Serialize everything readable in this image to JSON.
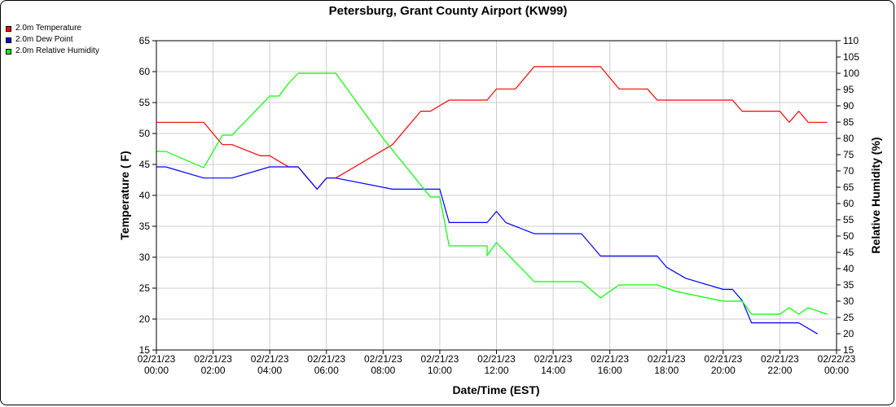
{
  "chart_data": {
    "type": "line",
    "title": "Petersburg, Grant County Airport (KW99)",
    "xlabel": "Date/Time (EST)",
    "ylabel": "Temperature ( F)",
    "y2label": "Relative Humidity (%)",
    "xlim": [
      0,
      24
    ],
    "ylim": [
      15,
      65
    ],
    "y2lim": [
      15,
      110
    ],
    "grid": true,
    "legend_position": "top-left",
    "x_tick_labels": [
      [
        "02/21/23",
        "00:00"
      ],
      [
        "02/21/23",
        "02:00"
      ],
      [
        "02/21/23",
        "04:00"
      ],
      [
        "02/21/23",
        "06:00"
      ],
      [
        "02/21/23",
        "08:00"
      ],
      [
        "02/21/23",
        "10:00"
      ],
      [
        "02/21/23",
        "12:00"
      ],
      [
        "02/21/23",
        "14:00"
      ],
      [
        "02/21/23",
        "16:00"
      ],
      [
        "02/21/23",
        "18:00"
      ],
      [
        "02/21/23",
        "20:00"
      ],
      [
        "02/21/23",
        "22:00"
      ],
      [
        "02/22/23",
        "00:00"
      ]
    ],
    "y_ticks": [
      15,
      20,
      25,
      30,
      35,
      40,
      45,
      50,
      55,
      60,
      65
    ],
    "y2_ticks": [
      15,
      20,
      25,
      30,
      35,
      40,
      45,
      50,
      55,
      60,
      65,
      70,
      75,
      80,
      85,
      90,
      95,
      100,
      105,
      110
    ],
    "series": [
      {
        "name": "2.0m Temperature",
        "color": "#ff0000",
        "axis": "left",
        "x": [
          0,
          1.67,
          2.33,
          2.67,
          3.67,
          4,
          4.33,
          4.67,
          5,
          5.33,
          5.67,
          6,
          6.33,
          7,
          8.33,
          9.33,
          9.67,
          10.33,
          11,
          11.67,
          12,
          12.67,
          13.33,
          15.67,
          16,
          16.33,
          17,
          17.33,
          17.67,
          18,
          20.33,
          20.67,
          22,
          22.33,
          22.67,
          23,
          23.67
        ],
        "values": [
          51.8,
          51.8,
          48.2,
          48.2,
          46.4,
          46.4,
          45.5,
          44.6,
          44.6,
          42.8,
          41,
          42.8,
          42.8,
          44.6,
          48.2,
          53.6,
          53.6,
          55.4,
          55.4,
          55.4,
          57.2,
          57.2,
          60.8,
          60.8,
          59,
          57.2,
          57.2,
          57.2,
          55.4,
          55.4,
          55.4,
          53.6,
          53.6,
          51.8,
          53.6,
          51.8,
          51.8
        ]
      },
      {
        "name": "2.0m Dew Point",
        "color": "#0000ff",
        "axis": "left",
        "x": [
          0,
          0.33,
          1.67,
          2.67,
          4,
          5,
          5.67,
          6,
          6.33,
          8.33,
          10,
          10.33,
          11.67,
          12,
          12.33,
          13.33,
          15,
          15.67,
          17.67,
          18,
          18.67,
          20,
          20.33,
          20.67,
          21,
          22.67,
          23.33
        ],
        "values": [
          44.6,
          44.6,
          42.8,
          42.8,
          44.6,
          44.6,
          41,
          42.8,
          42.8,
          41,
          41,
          35.6,
          35.6,
          37.4,
          35.6,
          33.8,
          33.8,
          30.2,
          30.2,
          28.4,
          26.6,
          24.8,
          24.8,
          23,
          19.4,
          19.4,
          17.6
        ]
      },
      {
        "name": "2.0m Relative Humidity",
        "color": "#00ff00",
        "axis": "right",
        "x": [
          0,
          0.33,
          1.67,
          2.33,
          2.67,
          4,
          4.33,
          4.67,
          5,
          6.33,
          8,
          9.67,
          10,
          10.33,
          10.67,
          11.67,
          11.67,
          12,
          13.33,
          15,
          15.67,
          16.33,
          17.67,
          18,
          18.33,
          20,
          20.67,
          21,
          22,
          22.33,
          22.67,
          23,
          23.67
        ],
        "values": [
          76,
          76,
          71,
          81,
          81,
          93,
          93,
          97,
          100,
          100,
          80,
          62,
          62,
          47,
          47,
          47,
          44,
          48,
          36,
          36,
          31,
          35,
          35,
          34,
          33,
          30,
          30,
          26,
          26,
          28,
          26,
          28,
          26
        ]
      }
    ]
  }
}
